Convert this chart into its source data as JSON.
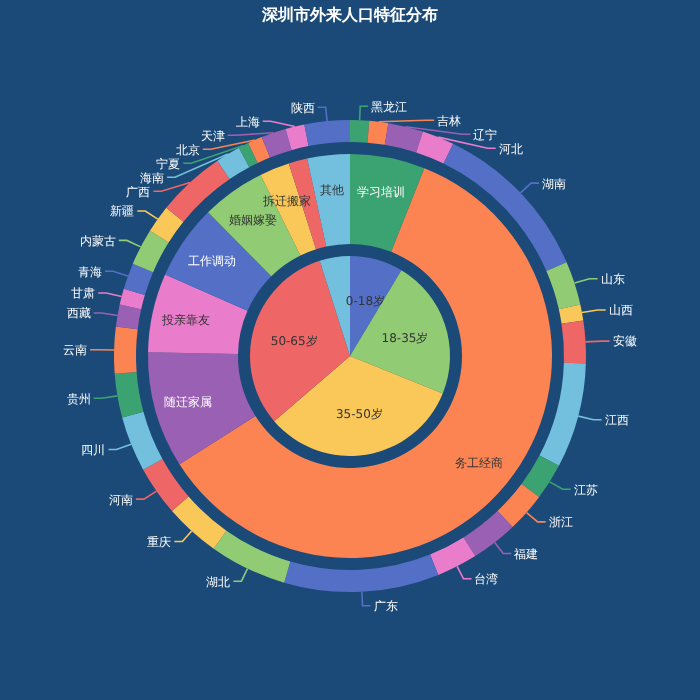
{
  "chart_data": [
    {
      "type": "pie",
      "title": "深圳市外来人口特征分布",
      "categories": [
        "0-18岁",
        "18-35岁",
        "35-50岁",
        "50-65岁",
        null
      ],
      "values": [
        8.6,
        22.5,
        32.6,
        31.4,
        4.9
      ],
      "colors": [
        "#5470c6",
        "#91cc75",
        "#fac858",
        "#ee6666",
        "#73c0de"
      ]
    },
    {
      "type": "donut",
      "categories": [
        "学习培训",
        "务工经商",
        "随迁家属",
        "投亲靠友",
        "工作调动",
        "婚姻嫁娶",
        "拆迁搬家",
        null,
        "其他"
      ],
      "values": [
        6,
        60,
        9.3,
        6.3,
        6,
        5.1,
        2.4,
        1.5,
        3.4
      ],
      "colors": [
        "#3ba272",
        "#fc8452",
        "#9a60b4",
        "#ea7ccc",
        "#5470c6",
        "#91cc75",
        "#fac858",
        "#ee6666",
        "#73c0de"
      ]
    },
    {
      "type": "donut",
      "categories": [
        "黑龙江",
        "吉林",
        "辽宁",
        "河北",
        "湖南",
        "山东",
        "山西",
        "安徽",
        "江西",
        "江苏",
        "浙江",
        "福建",
        "台湾",
        "广东",
        "湖北",
        "重庆",
        "河南",
        "四川",
        "贵州",
        "云南",
        "西藏",
        "甘肃",
        "青海",
        "内蒙古",
        "新疆",
        "广西",
        "海南",
        "宁夏",
        "北京",
        "天津",
        "上海",
        "陕西"
      ],
      "values": [
        1.3,
        1.3,
        2.4,
        2.2,
        11.3,
        3.0,
        1.1,
        2.9,
        7.2,
        2.5,
        2.7,
        3.2,
        2.8,
        10.6,
        5.3,
        3.8,
        3.4,
        3.8,
        3.0,
        3.2,
        1.5,
        1.1,
        1.8,
        2.5,
        1.9,
        4.7,
        1.7,
        0.7,
        1.0,
        1.7,
        1.3,
        3.1
      ],
      "colors": [
        "#3ba272",
        "#fc8452",
        "#9a60b4",
        "#ea7ccc",
        "#5470c6",
        "#91cc75",
        "#fac858",
        "#ee6666",
        "#73c0de",
        "#3ba272",
        "#fc8452",
        "#9a60b4",
        "#ea7ccc",
        "#5470c6",
        "#91cc75",
        "#fac858",
        "#ee6666",
        "#73c0de",
        "#3ba272",
        "#fc8452",
        "#9a60b4",
        "#ea7ccc",
        "#5470c6",
        "#91cc75",
        "#fac858",
        "#ee6666",
        "#73c0de",
        "#3ba272",
        "#fc8452",
        "#9a60b4",
        "#ea7ccc",
        "#5470c6"
      ]
    }
  ]
}
